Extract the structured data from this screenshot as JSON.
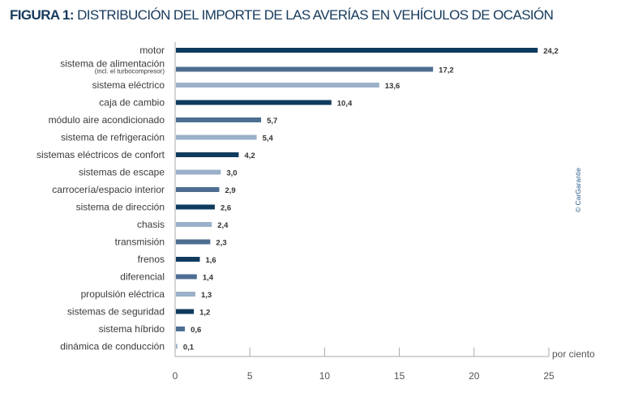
{
  "title": {
    "prefix": "FIGURA 1:",
    "text": "DISTRIBUCIÓN DEL IMPORTE DE LAS AVERÍAS EN VEHÍCULOS DE OCASIÓN"
  },
  "copyright": "© CarGarantie",
  "chart_data": {
    "type": "bar",
    "orientation": "horizontal",
    "xlabel": "por ciento",
    "xlim": [
      0,
      25
    ],
    "xticks": [
      "0",
      "5",
      "10",
      "15",
      "20",
      "25"
    ],
    "grid": false,
    "colors": {
      "dark": "#0f3b5f",
      "mid": "#4d6e91",
      "light": "#9bb0c9"
    },
    "categories": [
      {
        "label": "motor",
        "value": 24.2,
        "value_label": "24,2",
        "color": "dark"
      },
      {
        "label": "sistema de alimentación",
        "sublabel": "(incl. el turbocompresor)",
        "value": 17.2,
        "value_label": "17,2",
        "color": "mid"
      },
      {
        "label": "sistema eléctrico",
        "value": 13.6,
        "value_label": "13,6",
        "color": "light"
      },
      {
        "label": "caja de cambio",
        "value": 10.4,
        "value_label": "10,4",
        "color": "dark"
      },
      {
        "label": "módulo aire acondicionado",
        "value": 5.7,
        "value_label": "5,7",
        "color": "mid"
      },
      {
        "label": "sistema de refrigeración",
        "value": 5.4,
        "value_label": "5,4",
        "color": "light"
      },
      {
        "label": "sistemas eléctricos de confort",
        "value": 4.2,
        "value_label": "4,2",
        "color": "dark"
      },
      {
        "label": "sistemas de escape",
        "value": 3.0,
        "value_label": "3,0",
        "color": "light"
      },
      {
        "label": "carrocería/espacio interior",
        "value": 2.9,
        "value_label": "2,9",
        "color": "mid"
      },
      {
        "label": "sistema de dirección",
        "value": 2.6,
        "value_label": "2,6",
        "color": "dark"
      },
      {
        "label": "chasis",
        "value": 2.4,
        "value_label": "2,4",
        "color": "light"
      },
      {
        "label": "transmisión",
        "value": 2.3,
        "value_label": "2,3",
        "color": "mid"
      },
      {
        "label": "frenos",
        "value": 1.6,
        "value_label": "1,6",
        "color": "dark"
      },
      {
        "label": "diferencial",
        "value": 1.4,
        "value_label": "1,4",
        "color": "mid"
      },
      {
        "label": "propulsión eléctrica",
        "value": 1.3,
        "value_label": "1,3",
        "color": "light"
      },
      {
        "label": "sistemas de seguridad",
        "value": 1.2,
        "value_label": "1,2",
        "color": "dark"
      },
      {
        "label": "sistema híbrido",
        "value": 0.6,
        "value_label": "0,6",
        "color": "mid"
      },
      {
        "label": "dinámica de conducción",
        "value": 0.1,
        "value_label": "0,1",
        "color": "light"
      }
    ]
  }
}
